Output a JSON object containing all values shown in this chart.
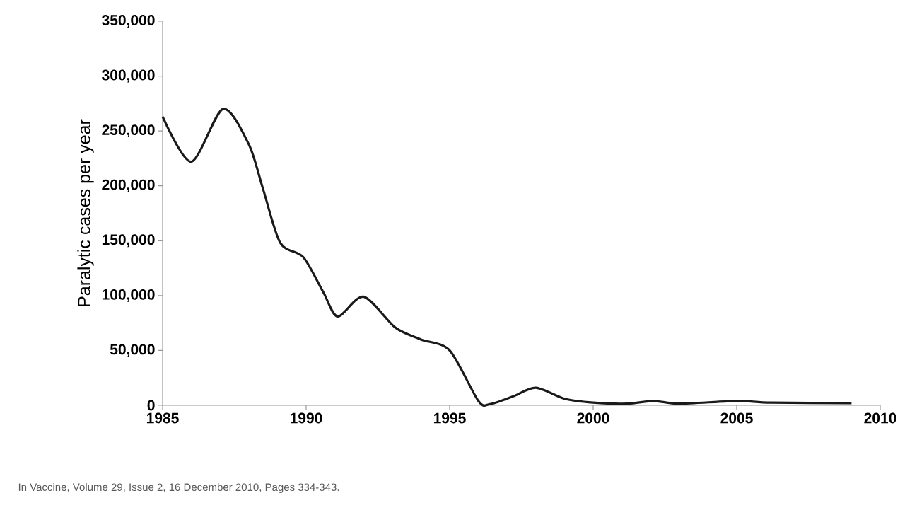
{
  "chart_data": {
    "type": "line",
    "ylabel": "Paralytic cases per year",
    "annotations": [
      "In Vaccine, Volume 29, Issue 2, 16 December 2010, Pages 334-343."
    ],
    "x": [
      1985,
      1986,
      1987.1,
      1988,
      1988.5,
      1989.1,
      1989.9,
      1990.6,
      1991.1,
      1992,
      1993.1,
      1994,
      1995,
      1996,
      1996.4,
      1997.2,
      1998,
      1999,
      2000,
      2001.2,
      2002.1,
      2003,
      2005,
      2006.2,
      2009
    ],
    "series": [
      {
        "color": "#1a1a1a",
        "values": [
          263000,
          222000,
          270000,
          238000,
          197000,
          148000,
          135000,
          103000,
          81000,
          99000,
          71000,
          60000,
          50000,
          4000,
          1000,
          8000,
          16000,
          6000,
          2500,
          1500,
          4000,
          1500,
          4000,
          2500,
          2000
        ]
      }
    ],
    "xlim": [
      1985,
      2010
    ],
    "ylim": [
      0,
      350000
    ],
    "xticks": [
      1985,
      1990,
      1995,
      2000,
      2005,
      2010
    ],
    "yticks": [
      {
        "value": 0,
        "label": "0"
      },
      {
        "value": 50000,
        "label": "50,000"
      },
      {
        "value": 100000,
        "label": "100,000"
      },
      {
        "value": 150000,
        "label": "150,000"
      },
      {
        "value": 200000,
        "label": "200,000"
      },
      {
        "value": 250000,
        "label": "250,000"
      },
      {
        "value": 300000,
        "label": "300,000"
      },
      {
        "value": 350000,
        "label": "350,000"
      }
    ]
  }
}
